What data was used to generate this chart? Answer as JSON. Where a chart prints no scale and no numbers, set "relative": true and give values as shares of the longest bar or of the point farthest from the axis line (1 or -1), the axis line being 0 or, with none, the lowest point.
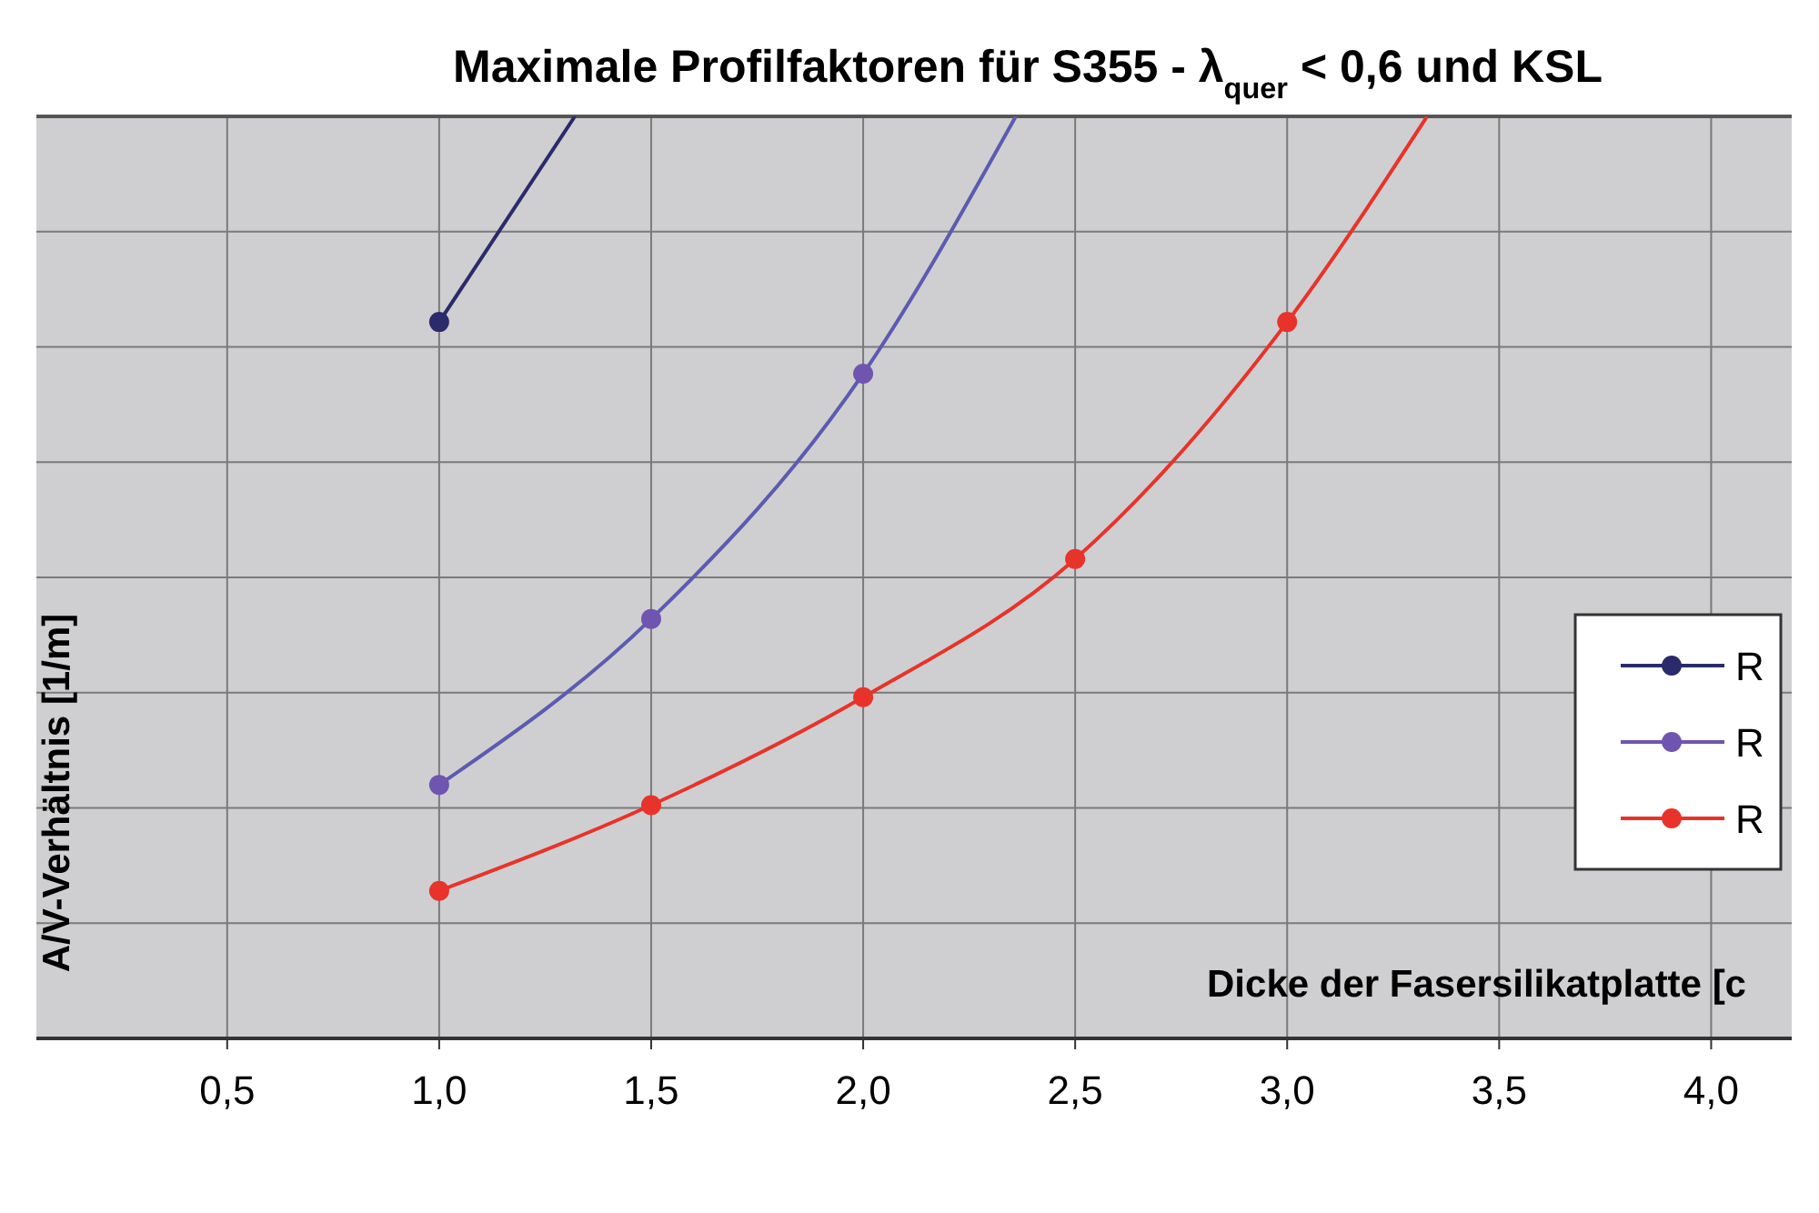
{
  "chart_data": {
    "type": "line",
    "title": "Maximale Profilfaktoren für S355 - λ$_{quer}$ < 0,6 und KSL",
    "xlabel": "Dicke der Fasersilikatplatte  [c",
    "ylabel": "A/V-Verhältnis   [1/m]",
    "relative": true,
    "xlim": [
      0.05,
      4.19
    ],
    "xticks": [
      {
        "value": 0.5,
        "label": "0,5"
      },
      {
        "value": 1,
        "label": "1,0"
      },
      {
        "value": 1.5,
        "label": "1,5"
      },
      {
        "value": 2,
        "label": "2,0"
      },
      {
        "value": 2.5,
        "label": "2,5"
      },
      {
        "value": 3,
        "label": "3,0"
      },
      {
        "value": 3.5,
        "label": "3,5"
      },
      {
        "value": 4,
        "label": "4,0"
      }
    ],
    "grid": true,
    "legend": "right",
    "series": [
      {
        "type": "line",
        "marker": "none",
        "color": "#2b2a6b",
        "x": [
          1.0,
          1.32
        ],
        "values": [
          0.777,
          1
        ]
      },
      {
        "type": "line",
        "marker": "none",
        "color": "#5b5bb0",
        "x": [
          1.0,
          1.5,
          2.0,
          2.36
        ],
        "values": [
          0.275,
          0.455,
          0.721,
          1
        ]
      },
      {
        "type": "line",
        "marker": "none",
        "color": "#e8332a",
        "x": [
          1.0,
          1.5,
          2.0,
          2.5,
          3.0,
          3.33
        ],
        "values": [
          0.16,
          0.253,
          0.37,
          0.52,
          0.777,
          1
        ]
      },
      {
        "type": "scatter",
        "name": "R",
        "marker": "circle",
        "color": "#2b2a6b",
        "x": [
          1.0
        ],
        "values": [
          0.777
        ]
      },
      {
        "type": "scatter",
        "name": "R",
        "marker": "circle",
        "color": "#6f55b0",
        "x": [
          1.0,
          1.5,
          2.0
        ],
        "values": [
          0.275,
          0.455,
          0.721
        ]
      },
      {
        "type": "scatter",
        "name": "R",
        "marker": "circle",
        "color": "#e8332a",
        "x": [
          1.0,
          1.5,
          2.0,
          2.5,
          3.0
        ],
        "values": [
          0.16,
          0.253,
          0.37,
          0.52,
          0.777
        ]
      }
    ]
  }
}
